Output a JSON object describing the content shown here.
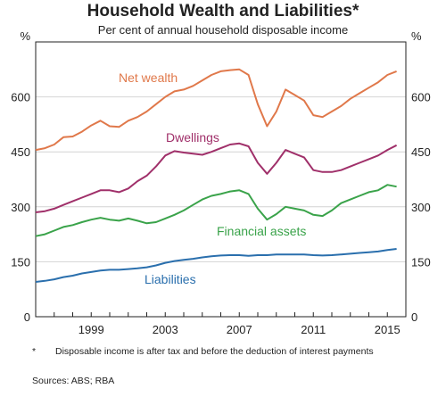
{
  "chart_data": {
    "type": "line",
    "title": "Household Wealth and Liabilities*",
    "subtitle": "Per cent of annual household disposable income",
    "unit_left": "%",
    "unit_right": "%",
    "ylim": [
      0,
      750
    ],
    "yticks": [
      0,
      150,
      300,
      450,
      600
    ],
    "xlim": [
      1996.0,
      2016.0
    ],
    "xticks": [
      1999,
      2003,
      2007,
      2011,
      2015
    ],
    "grid": true,
    "series": [
      {
        "name": "Net wealth",
        "color": "#e0784a",
        "x": [
          1996.0,
          1996.5,
          1997.0,
          1997.5,
          1998.0,
          1998.5,
          1999.0,
          1999.5,
          2000.0,
          2000.5,
          2001.0,
          2001.5,
          2002.0,
          2002.5,
          2003.0,
          2003.5,
          2004.0,
          2004.5,
          2005.0,
          2005.5,
          2006.0,
          2006.5,
          2007.0,
          2007.5,
          2008.0,
          2008.5,
          2009.0,
          2009.5,
          2010.0,
          2010.5,
          2011.0,
          2011.5,
          2012.0,
          2012.5,
          2013.0,
          2013.5,
          2014.0,
          2014.5,
          2015.0,
          2015.5
        ],
        "values": [
          455,
          460,
          470,
          490,
          492,
          505,
          522,
          535,
          520,
          518,
          535,
          545,
          560,
          580,
          600,
          615,
          620,
          630,
          645,
          660,
          670,
          673,
          675,
          660,
          580,
          520,
          560,
          620,
          605,
          590,
          550,
          545,
          560,
          575,
          595,
          610,
          625,
          640,
          660,
          670
        ]
      },
      {
        "name": "Dwellings",
        "color": "#a0306a",
        "x": [
          1996.0,
          1996.5,
          1997.0,
          1997.5,
          1998.0,
          1998.5,
          1999.0,
          1999.5,
          2000.0,
          2000.5,
          2001.0,
          2001.5,
          2002.0,
          2002.5,
          2003.0,
          2003.5,
          2004.0,
          2004.5,
          2005.0,
          2005.5,
          2006.0,
          2006.5,
          2007.0,
          2007.5,
          2008.0,
          2008.5,
          2009.0,
          2009.5,
          2010.0,
          2010.5,
          2011.0,
          2011.5,
          2012.0,
          2012.5,
          2013.0,
          2013.5,
          2014.0,
          2014.5,
          2015.0,
          2015.5
        ],
        "values": [
          285,
          288,
          295,
          305,
          315,
          325,
          335,
          345,
          345,
          340,
          350,
          370,
          385,
          410,
          440,
          452,
          448,
          445,
          442,
          450,
          460,
          470,
          473,
          465,
          420,
          390,
          420,
          455,
          445,
          435,
          400,
          395,
          395,
          400,
          410,
          420,
          430,
          440,
          455,
          468
        ]
      },
      {
        "name": "Financial assets",
        "color": "#3aa34a",
        "x": [
          1996.0,
          1996.5,
          1997.0,
          1997.5,
          1998.0,
          1998.5,
          1999.0,
          1999.5,
          2000.0,
          2000.5,
          2001.0,
          2001.5,
          2002.0,
          2002.5,
          2003.0,
          2003.5,
          2004.0,
          2004.5,
          2005.0,
          2005.5,
          2006.0,
          2006.5,
          2007.0,
          2007.5,
          2008.0,
          2008.5,
          2009.0,
          2009.5,
          2010.0,
          2010.5,
          2011.0,
          2011.5,
          2012.0,
          2012.5,
          2013.0,
          2013.5,
          2014.0,
          2014.5,
          2015.0,
          2015.5
        ],
        "values": [
          220,
          225,
          235,
          245,
          250,
          258,
          265,
          270,
          265,
          262,
          268,
          262,
          255,
          258,
          268,
          278,
          290,
          305,
          320,
          330,
          335,
          342,
          345,
          335,
          295,
          265,
          280,
          300,
          295,
          290,
          278,
          275,
          290,
          310,
          320,
          330,
          340,
          345,
          360,
          355
        ]
      },
      {
        "name": "Liabilities",
        "color": "#2a6fad",
        "x": [
          1996.0,
          1996.5,
          1997.0,
          1997.5,
          1998.0,
          1998.5,
          1999.0,
          1999.5,
          2000.0,
          2000.5,
          2001.0,
          2001.5,
          2002.0,
          2002.5,
          2003.0,
          2003.5,
          2004.0,
          2004.5,
          2005.0,
          2005.5,
          2006.0,
          2006.5,
          2007.0,
          2007.5,
          2008.0,
          2008.5,
          2009.0,
          2009.5,
          2010.0,
          2010.5,
          2011.0,
          2011.5,
          2012.0,
          2012.5,
          2013.0,
          2013.5,
          2014.0,
          2014.5,
          2015.0,
          2015.5
        ],
        "values": [
          95,
          98,
          102,
          108,
          112,
          118,
          122,
          126,
          128,
          128,
          130,
          132,
          135,
          140,
          147,
          152,
          155,
          158,
          162,
          165,
          167,
          168,
          168,
          166,
          168,
          168,
          170,
          170,
          170,
          170,
          168,
          167,
          168,
          170,
          172,
          174,
          176,
          178,
          182,
          185
        ]
      }
    ],
    "labels": [
      "Net wealth",
      "Dwellings",
      "Financial assets",
      "Liabilities"
    ]
  },
  "footnote": {
    "marker": "*",
    "text": "Disposable income is after tax and before the deduction of interest payments"
  },
  "sources": "Sources:  ABS; RBA"
}
